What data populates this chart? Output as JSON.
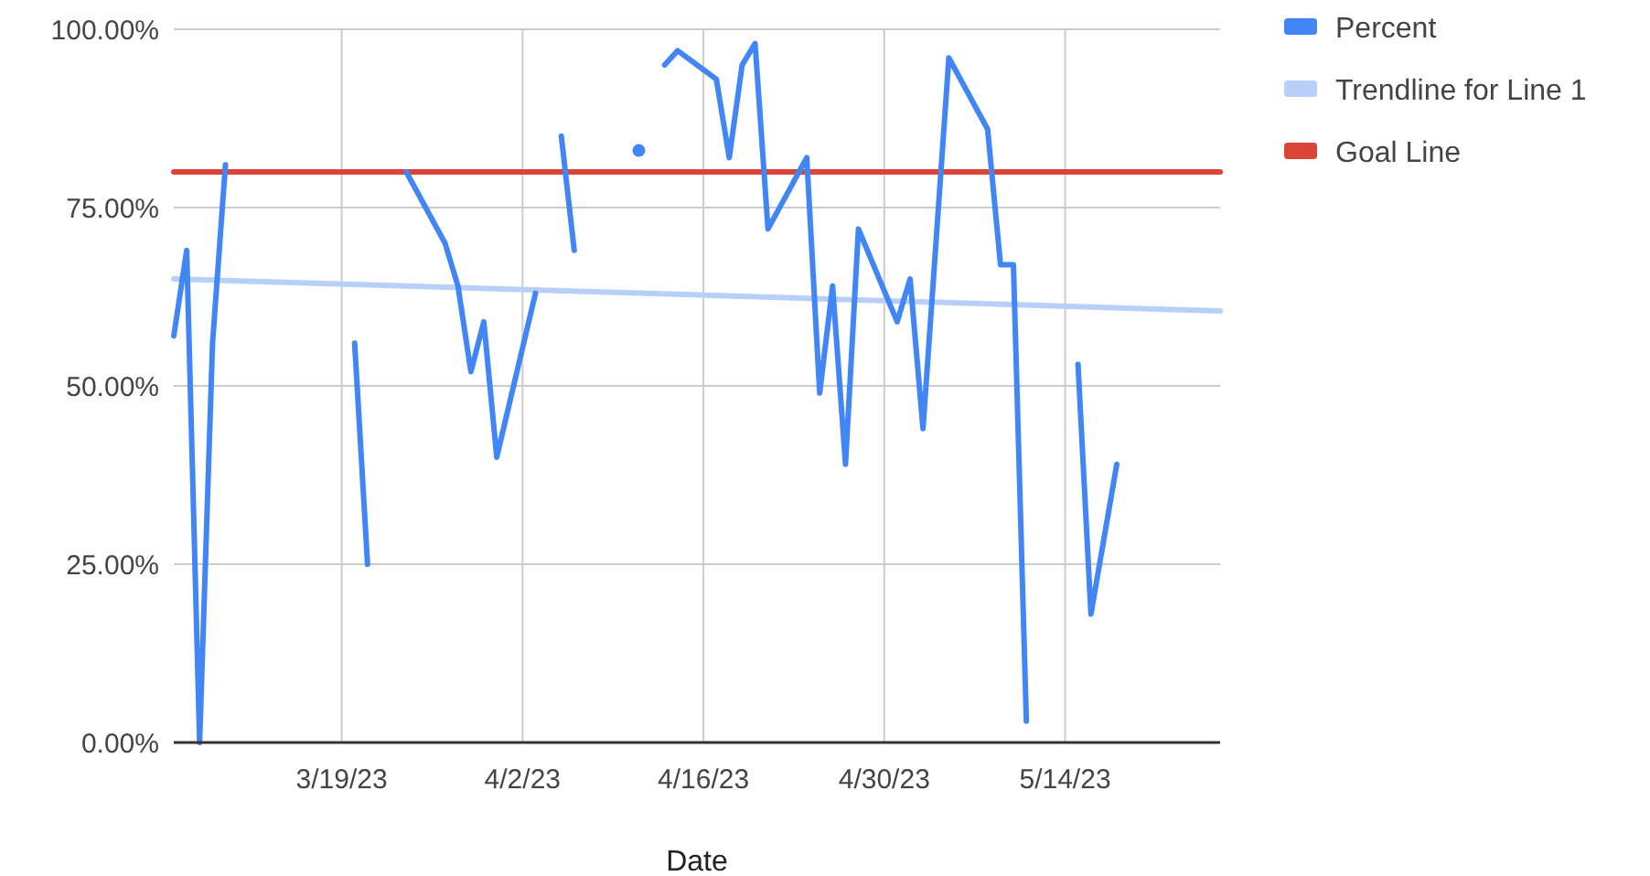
{
  "chart_data": {
    "type": "line",
    "xlabel": "Date",
    "xlim": [
      "2023-03-06",
      "2023-05-26"
    ],
    "xticks": [
      {
        "value": "2023-03-19",
        "label": "3/19/23"
      },
      {
        "value": "2023-04-02",
        "label": "4/2/23"
      },
      {
        "value": "2023-04-16",
        "label": "4/16/23"
      },
      {
        "value": "2023-04-30",
        "label": "4/30/23"
      },
      {
        "value": "2023-05-14",
        "label": "5/14/23"
      }
    ],
    "ylim": [
      0,
      100
    ],
    "yticks": [
      {
        "value": 0,
        "label": "0.00%"
      },
      {
        "value": 25,
        "label": "25.00%"
      },
      {
        "value": 50,
        "label": "50.00%"
      },
      {
        "value": 75,
        "label": "75.00%"
      },
      {
        "value": 100,
        "label": "100.00%"
      }
    ],
    "grid": true,
    "legend": "right",
    "marker": "none",
    "line_style": "solid",
    "series": [
      {
        "name": "Percent",
        "color": "#4285f4",
        "x": [
          "2023-03-06",
          "2023-03-07",
          "2023-03-08",
          "2023-03-09",
          "2023-03-10",
          "2023-03-15",
          "2023-03-20",
          "2023-03-21",
          "2023-03-23",
          "2023-03-24",
          "2023-03-27",
          "2023-03-28",
          "2023-03-29",
          "2023-03-30",
          "2023-03-31",
          "2023-04-03",
          "2023-04-04",
          "2023-04-05",
          "2023-04-06",
          "2023-04-09",
          "2023-04-11",
          "2023-04-12",
          "2023-04-13",
          "2023-04-14",
          "2023-04-17",
          "2023-04-18",
          "2023-04-19",
          "2023-04-20",
          "2023-04-21",
          "2023-04-24",
          "2023-04-25",
          "2023-04-26",
          "2023-04-27",
          "2023-04-28",
          "2023-05-01",
          "2023-05-02",
          "2023-05-03",
          "2023-05-05",
          "2023-05-08",
          "2023-05-09",
          "2023-05-10",
          "2023-05-11",
          "2023-05-13",
          "2023-05-15",
          "2023-05-16",
          "2023-05-18"
        ],
        "values": [
          57,
          69,
          0,
          56,
          81,
          null,
          56,
          25,
          null,
          80,
          70,
          64,
          52,
          59,
          40,
          63,
          null,
          85,
          69,
          null,
          83,
          null,
          95,
          97,
          93,
          82,
          95,
          98,
          72,
          82,
          49,
          64,
          39,
          72,
          59,
          65,
          44,
          96,
          86,
          67,
          67,
          3,
          null,
          53,
          18,
          39
        ]
      },
      {
        "name": "Trendline for Line 1",
        "color": "#b7cff9",
        "x": [
          "2023-03-06",
          "2023-05-26"
        ],
        "values": [
          65,
          60.5
        ]
      },
      {
        "name": "Goal Line",
        "color": "#db4437",
        "x": [
          "2023-03-06",
          "2023-05-26"
        ],
        "values": [
          80,
          80
        ]
      }
    ]
  }
}
